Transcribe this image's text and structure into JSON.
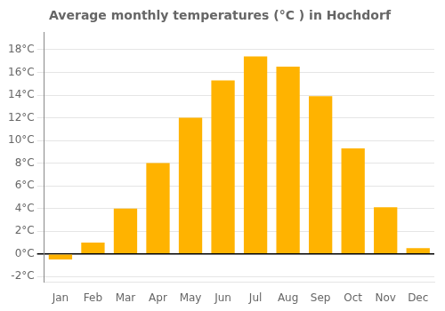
{
  "chart_data": {
    "type": "bar",
    "title": "Average monthly temperatures (°C ) in Hochdorf",
    "categories": [
      "Jan",
      "Feb",
      "Mar",
      "Apr",
      "May",
      "Jun",
      "Jul",
      "Aug",
      "Sep",
      "Oct",
      "Nov",
      "Dec"
    ],
    "values": [
      -0.5,
      1.0,
      4.0,
      8.0,
      12.0,
      15.3,
      17.4,
      16.5,
      13.9,
      9.3,
      4.1,
      0.5
    ],
    "color": "#FFB300",
    "ylim": [
      -2.5,
      19.5
    ],
    "yticks": [
      {
        "value": -2,
        "label": "-2°C"
      },
      {
        "value": 0,
        "label": "0°C"
      },
      {
        "value": 2,
        "label": "2°C"
      },
      {
        "value": 4,
        "label": "4°C"
      },
      {
        "value": 6,
        "label": "6°C"
      },
      {
        "value": 8,
        "label": "8°C"
      },
      {
        "value": 10,
        "label": "10°C"
      },
      {
        "value": 12,
        "label": "12°C"
      },
      {
        "value": 14,
        "label": "14°C"
      },
      {
        "value": 16,
        "label": "16°C"
      },
      {
        "value": 18,
        "label": "18°C"
      }
    ],
    "grid": true
  }
}
